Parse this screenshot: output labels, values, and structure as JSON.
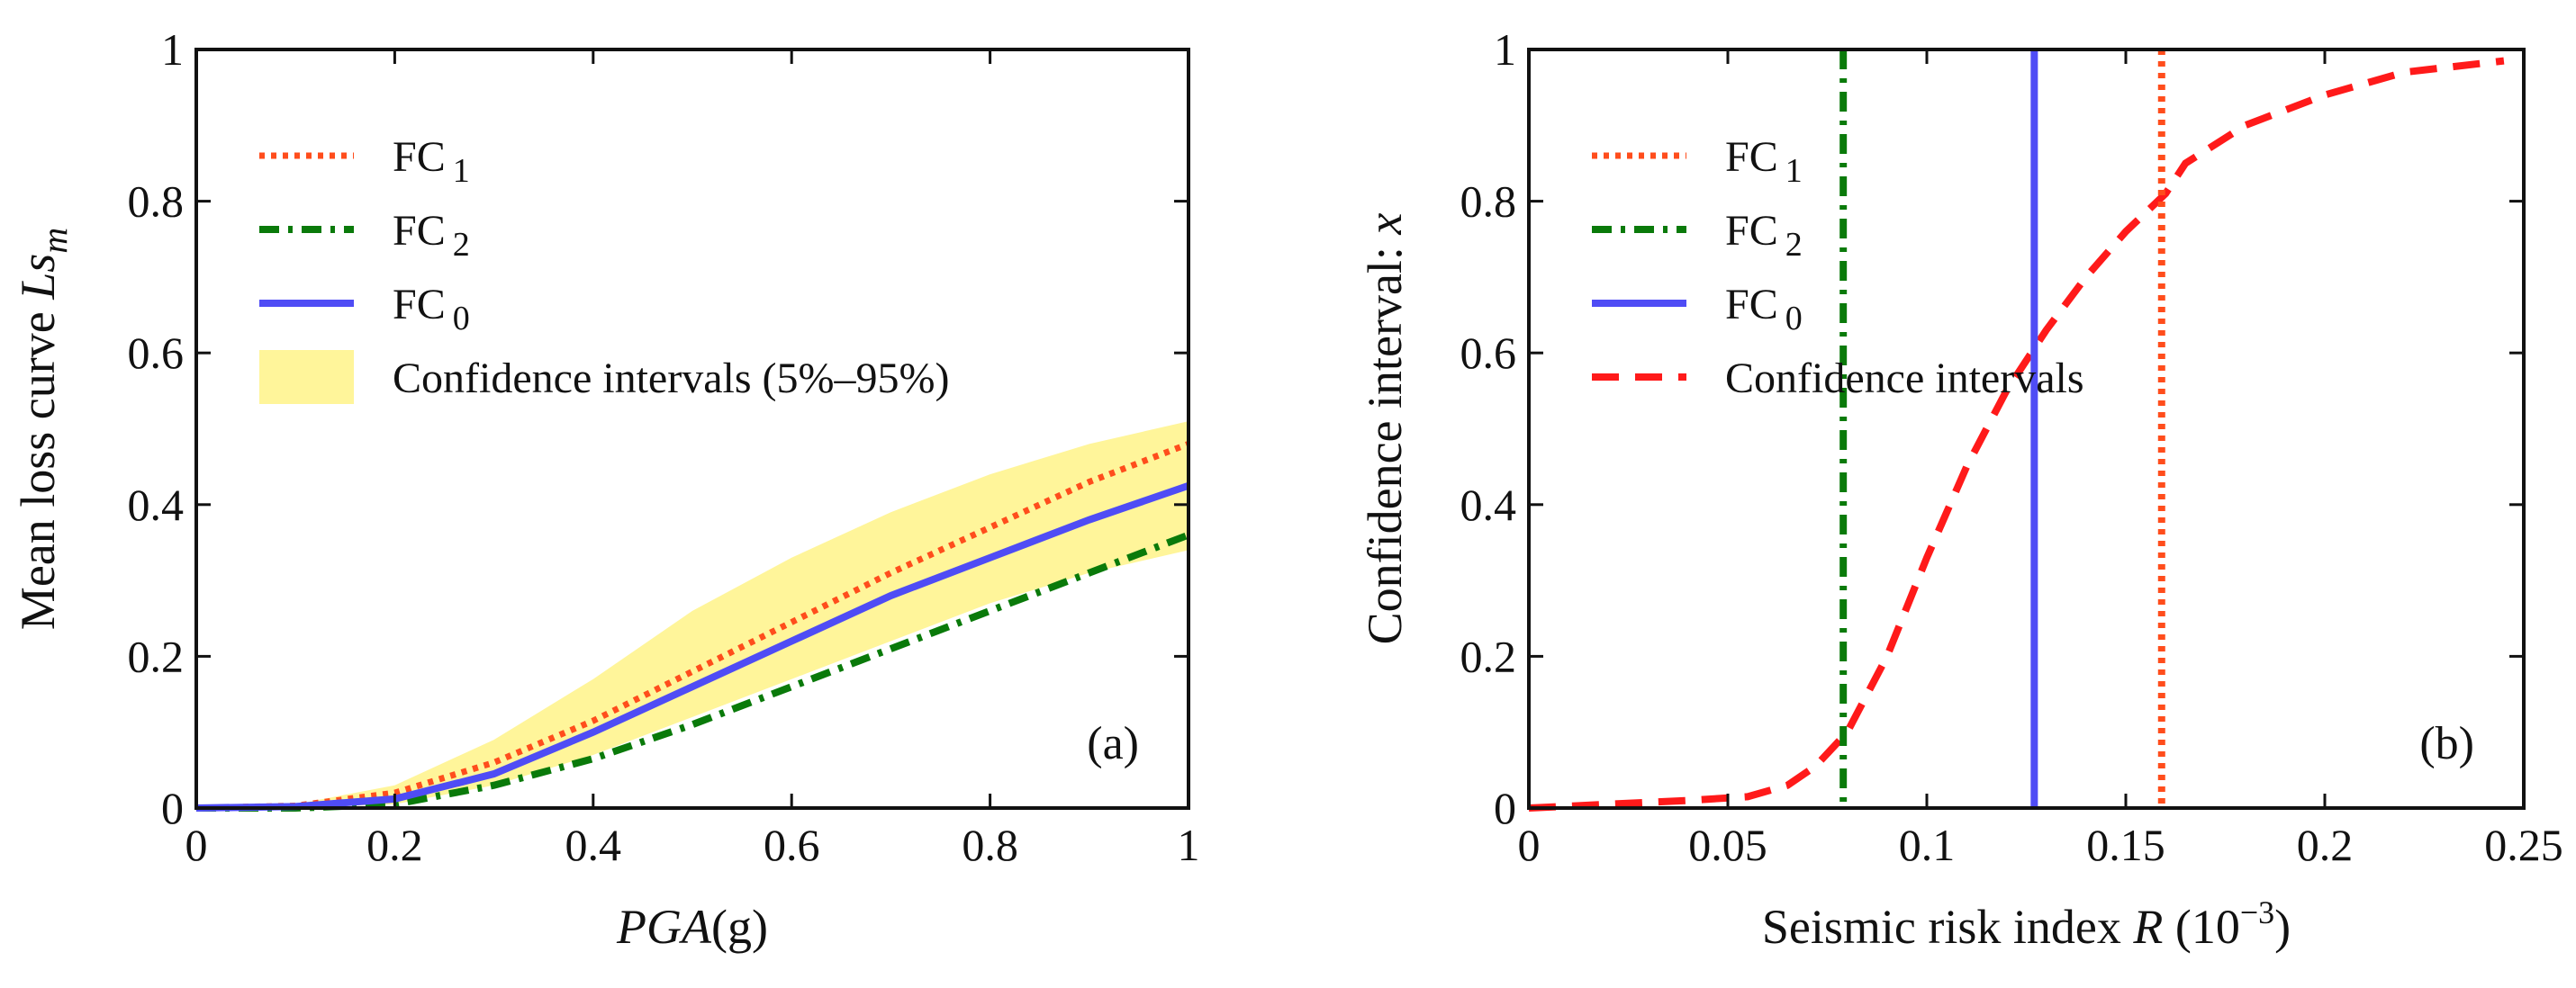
{
  "chart_data": [
    {
      "panel": "a",
      "type": "line",
      "panel_label": "(a)",
      "xlabel": {
        "italic": "PGA",
        "rest": "(g)"
      },
      "ylabel": {
        "main": "Mean loss curve ",
        "italic": "Ls",
        "sub": "m"
      },
      "xlim": [
        0,
        1
      ],
      "ylim": [
        0,
        1
      ],
      "xticks": [
        0,
        0.2,
        0.4,
        0.6,
        0.8,
        1
      ],
      "xtick_labels": [
        "0",
        "0.2",
        "0.4",
        "0.6",
        "0.8",
        "1"
      ],
      "yticks": [
        0,
        0.2,
        0.4,
        0.6,
        0.8,
        1
      ],
      "ytick_labels": [
        "0",
        "0.2",
        "0.4",
        "0.6",
        "0.8",
        "1"
      ],
      "legend_position": "top-left",
      "band": {
        "name": "Confidence intervals (5%–95%)",
        "color": "#fff59a",
        "x": [
          0,
          0.1,
          0.2,
          0.3,
          0.4,
          0.5,
          0.6,
          0.7,
          0.8,
          0.9,
          1.0
        ],
        "lower": [
          0,
          0,
          0.005,
          0.03,
          0.07,
          0.12,
          0.17,
          0.22,
          0.27,
          0.31,
          0.34
        ],
        "upper": [
          0,
          0.005,
          0.03,
          0.09,
          0.17,
          0.26,
          0.33,
          0.39,
          0.44,
          0.48,
          0.51
        ]
      },
      "series": [
        {
          "name": "FC",
          "sub": "1",
          "color": "#ff4d1c",
          "style": "dotted",
          "x": [
            0,
            0.1,
            0.2,
            0.3,
            0.4,
            0.5,
            0.6,
            0.7,
            0.8,
            0.9,
            1.0
          ],
          "values": [
            0,
            0.003,
            0.02,
            0.06,
            0.115,
            0.18,
            0.245,
            0.31,
            0.37,
            0.43,
            0.48
          ]
        },
        {
          "name": "FC",
          "sub": "2",
          "color": "#0a7a0a",
          "style": "dashdot",
          "x": [
            0,
            0.1,
            0.2,
            0.3,
            0.4,
            0.5,
            0.6,
            0.7,
            0.8,
            0.9,
            1.0
          ],
          "values": [
            0,
            0,
            0.005,
            0.03,
            0.065,
            0.11,
            0.16,
            0.21,
            0.26,
            0.31,
            0.36
          ]
        },
        {
          "name": "FC",
          "sub": "0",
          "color": "#4f4cf5",
          "style": "solid",
          "x": [
            0,
            0.1,
            0.2,
            0.3,
            0.4,
            0.5,
            0.6,
            0.7,
            0.8,
            0.9,
            1.0
          ],
          "values": [
            0,
            0.002,
            0.012,
            0.045,
            0.1,
            0.16,
            0.22,
            0.28,
            0.33,
            0.38,
            0.425
          ]
        }
      ]
    },
    {
      "panel": "b",
      "type": "line",
      "panel_label": "(b)",
      "xlabel": {
        "main": "Seismic risk index ",
        "italic": "R",
        "paren": " (10",
        "sup": "−3",
        "close": ")"
      },
      "ylabel": {
        "main": "Confidence interval: ",
        "italic": "x"
      },
      "xlim": [
        0,
        0.25
      ],
      "ylim": [
        0,
        1
      ],
      "xticks": [
        0,
        0.05,
        0.1,
        0.15,
        0.2,
        0.25
      ],
      "xtick_labels": [
        "0",
        "0.05",
        "0.1",
        "0.15",
        "0.2",
        "0.25"
      ],
      "yticks": [
        0,
        0.2,
        0.4,
        0.6,
        0.8,
        1
      ],
      "ytick_labels": [
        "0",
        "0.2",
        "0.4",
        "0.6",
        "0.8",
        "1"
      ],
      "legend_position": "top-left",
      "vlines": [
        {
          "name": "FC",
          "sub": "1",
          "color": "#ff4d1c",
          "style": "dotted",
          "x": 0.159
        },
        {
          "name": "FC",
          "sub": "2",
          "color": "#0a7a0a",
          "style": "dashdot",
          "x": 0.079
        },
        {
          "name": "FC",
          "sub": "0",
          "color": "#4f4cf5",
          "style": "solid",
          "x": 0.127
        }
      ],
      "series": [
        {
          "name": "Confidence intervals",
          "color": "#ff1a1a",
          "style": "dashed",
          "x": [
            0,
            0.02,
            0.04,
            0.055,
            0.065,
            0.072,
            0.08,
            0.09,
            0.1,
            0.11,
            0.12,
            0.13,
            0.14,
            0.15,
            0.16,
            0.165,
            0.18,
            0.2,
            0.22,
            0.245
          ],
          "values": [
            0,
            0.005,
            0.01,
            0.015,
            0.03,
            0.055,
            0.1,
            0.2,
            0.33,
            0.45,
            0.55,
            0.63,
            0.7,
            0.76,
            0.81,
            0.85,
            0.9,
            0.94,
            0.97,
            0.985
          ]
        }
      ]
    }
  ]
}
